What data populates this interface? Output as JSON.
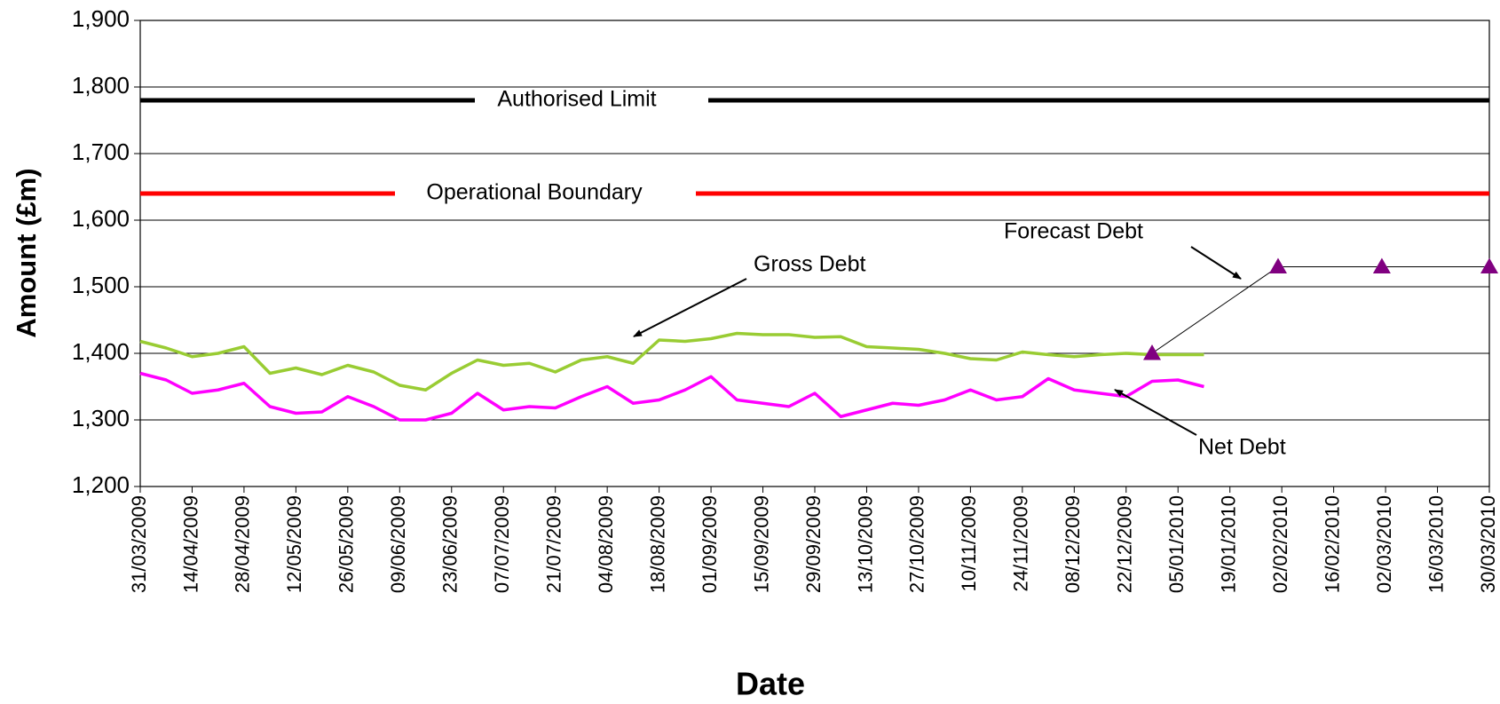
{
  "chart_data": {
    "type": "line",
    "x_label": "Date",
    "y_label": "Amount (£m)",
    "xlim": [
      "31/03/2009",
      "30/03/2010"
    ],
    "xticks": [
      "31/03/2009",
      "14/04/2009",
      "28/04/2009",
      "12/05/2009",
      "26/05/2009",
      "09/06/2009",
      "23/06/2009",
      "07/07/2009",
      "21/07/2009",
      "04/08/2009",
      "18/08/2009",
      "01/09/2009",
      "15/09/2009",
      "29/09/2009",
      "13/10/2009",
      "27/10/2009",
      "10/11/2009",
      "24/11/2009",
      "08/12/2009",
      "22/12/2009",
      "05/01/2010",
      "19/01/2010",
      "02/02/2010",
      "16/02/2010",
      "02/03/2010",
      "16/03/2010",
      "30/03/2010"
    ],
    "ylim": [
      1200,
      1900
    ],
    "yticks": [
      {
        "value": 1200,
        "label": "1,200"
      },
      {
        "value": 1300,
        "label": "1,300"
      },
      {
        "value": 1400,
        "label": "1,400"
      },
      {
        "value": 1500,
        "label": "1,500"
      },
      {
        "value": 1600,
        "label": "1,600"
      },
      {
        "value": 1700,
        "label": "1,700"
      },
      {
        "value": 1800,
        "label": "1,800"
      },
      {
        "value": 1900,
        "label": "1,900"
      }
    ],
    "grid": true,
    "x": [
      "31/03/2009",
      "07/04/2009",
      "14/04/2009",
      "21/04/2009",
      "28/04/2009",
      "05/05/2009",
      "12/05/2009",
      "19/05/2009",
      "26/05/2009",
      "02/06/2009",
      "09/06/2009",
      "16/06/2009",
      "23/06/2009",
      "30/06/2009",
      "07/07/2009",
      "14/07/2009",
      "21/07/2009",
      "28/07/2009",
      "04/08/2009",
      "11/08/2009",
      "18/08/2009",
      "25/08/2009",
      "01/09/2009",
      "08/09/2009",
      "15/09/2009",
      "22/09/2009",
      "29/09/2009",
      "06/10/2009",
      "13/10/2009",
      "20/10/2009",
      "27/10/2009",
      "03/11/2009",
      "10/11/2009",
      "17/11/2009",
      "24/11/2009",
      "01/12/2009",
      "08/12/2009",
      "15/12/2009",
      "22/12/2009",
      "29/12/2009",
      "05/01/2010",
      "12/01/2010"
    ],
    "series": [
      {
        "name": "Gross Debt",
        "color": "#99cc33",
        "values": [
          1418,
          1408,
          1395,
          1400,
          1410,
          1370,
          1378,
          1368,
          1382,
          1372,
          1352,
          1345,
          1370,
          1390,
          1382,
          1385,
          1372,
          1390,
          1395,
          1385,
          1420,
          1418,
          1422,
          1430,
          1428,
          1428,
          1424,
          1425,
          1410,
          1408,
          1406,
          1400,
          1392,
          1390,
          1402,
          1398,
          1395,
          1398,
          1400,
          1398,
          1398,
          1398
        ]
      },
      {
        "name": "Net Debt",
        "color": "#ff00ff",
        "values": [
          1370,
          1360,
          1340,
          1345,
          1355,
          1320,
          1310,
          1312,
          1335,
          1320,
          1300,
          1300,
          1310,
          1340,
          1315,
          1320,
          1318,
          1335,
          1350,
          1325,
          1330,
          1345,
          1365,
          1330,
          1325,
          1320,
          1340,
          1305,
          1315,
          1325,
          1322,
          1330,
          1345,
          1330,
          1335,
          1362,
          1345,
          1340,
          1335,
          1358,
          1360,
          1350
        ]
      }
    ],
    "forecast": {
      "name": "Forecast Debt",
      "color": "#800080",
      "x": [
        "29/12/2009",
        "01/02/2010",
        "01/03/2010",
        "30/03/2010"
      ],
      "values": [
        1400,
        1530,
        1530,
        1530
      ]
    },
    "reference_lines": [
      {
        "name": "Authorised Limit",
        "value": 1780,
        "color": "#000000"
      },
      {
        "name": "Operational Boundary",
        "value": 1640,
        "color": "#ff0000"
      }
    ]
  }
}
